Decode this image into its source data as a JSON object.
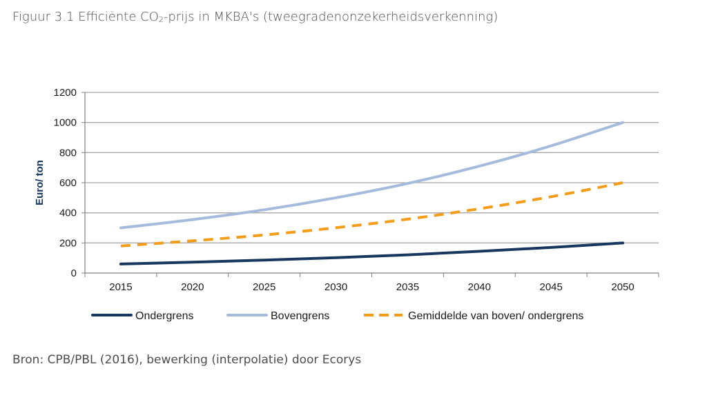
{
  "figure": {
    "title_prefix": "Figuur 3.1 Efficiënte CO",
    "title_sub": "2",
    "title_suffix": "-prijs in MKBA's (tweegradenonzekerheidsverkenning)",
    "source": "Bron: CPB/PBL (2016), bewerking (interpolatie) door Ecorys"
  },
  "colors": {
    "ondergrens": "#17375e",
    "bovengrens": "#a5bbdd",
    "gemiddelde": "#f59c1a",
    "grid": "#a6a6a6",
    "axis": "#808080"
  },
  "chart_data": {
    "type": "line",
    "ylabel": "Euro/ ton",
    "xlabel": "",
    "ylim": [
      0,
      1200
    ],
    "yticks": [
      0,
      200,
      400,
      600,
      800,
      1000,
      1200
    ],
    "x": [
      2015,
      2020,
      2025,
      2030,
      2035,
      2040,
      2045,
      2050
    ],
    "grid": "horizontal",
    "legend": "bottom",
    "series": [
      {
        "name": "Ondergrens",
        "style": "solid",
        "values": [
          60,
          72,
          86,
          102,
          121,
          144,
          170,
          200
        ]
      },
      {
        "name": "Bovengrens",
        "style": "solid",
        "values": [
          300,
          355,
          420,
          500,
          595,
          710,
          845,
          1000
        ]
      },
      {
        "name": "Gemiddelde van boven/ ondergrens",
        "style": "dashed",
        "values": [
          180,
          214,
          253,
          301,
          358,
          427,
          507,
          600
        ]
      }
    ]
  }
}
